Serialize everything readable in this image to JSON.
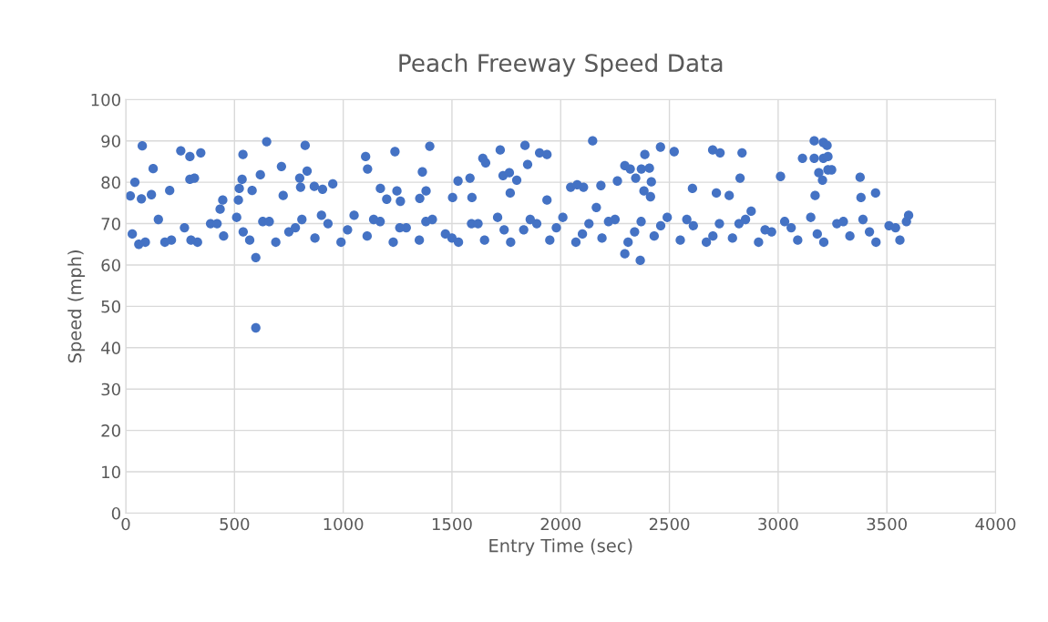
{
  "chart_data": {
    "type": "scatter",
    "title": "Peach Freeway Speed Data",
    "xlabel": "Entry Time (sec)",
    "ylabel": "Speed (mph)",
    "xlim": [
      0,
      4000
    ],
    "xticks": [
      0,
      500,
      1000,
      1500,
      2000,
      2500,
      3000,
      3500,
      4000
    ],
    "ylim": [
      0,
      100
    ],
    "yticks": [
      0,
      10,
      20,
      30,
      40,
      50,
      60,
      70,
      80,
      90,
      100
    ],
    "grid": true,
    "marker": "circle",
    "series": [
      {
        "color": "#4472c4",
        "x": [
          21,
          42,
          76,
          126,
          118,
          72,
          202,
          253,
          295,
          295,
          345,
          316,
          446,
          434,
          539,
          535,
          522,
          518,
          581,
          598,
          598,
          619,
          648,
          716,
          724,
          800,
          804,
          825,
          834,
          867,
          905,
          952,
          1103,
          1112,
          1171,
          1200,
          1238,
          1247,
          1263,
          1352,
          1364,
          1381,
          1398,
          1503,
          1528,
          1583,
          1592,
          1642,
          1655,
          1722,
          1735,
          1764,
          1768,
          1798,
          1836,
          1848,
          1903,
          1937,
          1937,
          2046,
          2076,
          2105,
          2147,
          2164,
          2185,
          2261,
          2295,
          2320,
          2345,
          2371,
          2383,
          2408,
          2417,
          2387,
          2413,
          2459,
          2522,
          2295,
          2366,
          2606,
          2699,
          2716,
          2733,
          2775,
          2825,
          2834,
          2876,
          3011,
          3112,
          3166,
          3166,
          3170,
          3208,
          3225,
          3208,
          3229,
          3229,
          3187,
          3246,
          3204,
          3377,
          3381,
          3448,
          30,
          90,
          150,
          210,
          270,
          330,
          390,
          450,
          510,
          570,
          630,
          690,
          750,
          810,
          870,
          930,
          990,
          1050,
          1110,
          1170,
          1230,
          1290,
          1350,
          1410,
          1470,
          1530,
          1590,
          1650,
          1710,
          1770,
          1830,
          1890,
          1950,
          2010,
          2070,
          2130,
          2190,
          2250,
          2310,
          2370,
          2430,
          2490,
          2550,
          2610,
          2670,
          2730,
          2790,
          2850,
          2910,
          2970,
          3030,
          3090,
          3150,
          3210,
          3270,
          3330,
          3390,
          3450,
          3510,
          3560,
          3600,
          60,
          180,
          300,
          420,
          540,
          660,
          780,
          900,
          1020,
          1140,
          1260,
          1380,
          1500,
          1620,
          1740,
          1860,
          1980,
          2100,
          2220,
          2340,
          2460,
          2580,
          2700,
          2820,
          2940,
          3060,
          3180,
          3300,
          3420,
          3540,
          3590
        ],
        "values": [
          76.7,
          80,
          88.8,
          83.3,
          77,
          76,
          78,
          87.6,
          86.2,
          80.7,
          87.1,
          81,
          75.7,
          73.5,
          86.7,
          80.7,
          78.5,
          75.7,
          78,
          61.8,
          44.8,
          81.8,
          89.8,
          83.8,
          76.8,
          81,
          78.8,
          88.9,
          82.7,
          79,
          78.3,
          79.6,
          86.2,
          83.2,
          78.5,
          75.9,
          87.4,
          77.9,
          75.4,
          76.1,
          82.5,
          77.9,
          88.7,
          76.3,
          80.3,
          81,
          76.3,
          85.8,
          84.7,
          87.8,
          81.6,
          82.3,
          77.4,
          80.5,
          88.9,
          84.3,
          87.1,
          86.7,
          75.7,
          78.8,
          79.4,
          78.8,
          90,
          73.9,
          79.2,
          80.3,
          84,
          83.2,
          81,
          83.2,
          77.9,
          83.4,
          80.1,
          86.7,
          76.5,
          88.5,
          87.4,
          62.7,
          61.1,
          78.5,
          87.8,
          77.4,
          87.1,
          76.8,
          81,
          87.1,
          73,
          81.4,
          85.8,
          90,
          85.8,
          76.8,
          89.6,
          88.9,
          85.8,
          86.2,
          83,
          82.3,
          83,
          80.5,
          81.2,
          76.3,
          77.4,
          67.5,
          65.5,
          71,
          66,
          69,
          65.5,
          70,
          67,
          71.5,
          66,
          70.5,
          65.5,
          68,
          71,
          66.5,
          70,
          65.5,
          72,
          67,
          70.5,
          65.5,
          69,
          66,
          71,
          67.5,
          65.5,
          70,
          66,
          71.5,
          65.5,
          68.5,
          70,
          66,
          71.5,
          65.5,
          70,
          66.5,
          71,
          65.5,
          70.5,
          67,
          71.5,
          66,
          69.5,
          65.5,
          70,
          66.5,
          71,
          65.5,
          68,
          70.5,
          66,
          71.5,
          65.5,
          70,
          67,
          71,
          65.5,
          69.5,
          66,
          72,
          65,
          65.5,
          66,
          70,
          68,
          70.5,
          69,
          72,
          68.5,
          71,
          69,
          70.5,
          66.5,
          70,
          68.5,
          71,
          69,
          67.5,
          70.5,
          68,
          69.5,
          71,
          67,
          70,
          68.5,
          69,
          67.5,
          70.5,
          68,
          69,
          70.5
        ]
      }
    ]
  }
}
